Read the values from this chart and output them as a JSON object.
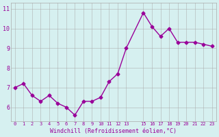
{
  "x": [
    0,
    1,
    2,
    3,
    4,
    5,
    6,
    7,
    8,
    9,
    10,
    11,
    12,
    13,
    15,
    16,
    17,
    18,
    19,
    20,
    21,
    22,
    23
  ],
  "y": [
    7.0,
    7.2,
    6.6,
    6.3,
    6.6,
    6.2,
    6.0,
    5.6,
    6.3,
    6.3,
    6.5,
    7.3,
    7.7,
    9.0,
    10.8,
    10.1,
    9.6,
    10.0,
    9.3,
    9.3,
    9.3,
    9.2,
    9.1
  ],
  "line_color": "#990099",
  "marker": "D",
  "marker_size": 2.5,
  "bg_color": "#d6f0f0",
  "grid_color": "#aaaaaa",
  "xlabel": "Windchill (Refroidissement éolien,°C)",
  "xlabel_color": "#990099",
  "tick_color": "#990099",
  "yticks": [
    6,
    7,
    8,
    9,
    10,
    11
  ],
  "xticks": [
    0,
    1,
    2,
    3,
    4,
    5,
    6,
    7,
    8,
    9,
    10,
    11,
    12,
    13,
    15,
    16,
    17,
    18,
    19,
    20,
    21,
    22,
    23
  ],
  "ylim": [
    5.3,
    11.3
  ],
  "xlim": [
    -0.5,
    23.5
  ]
}
